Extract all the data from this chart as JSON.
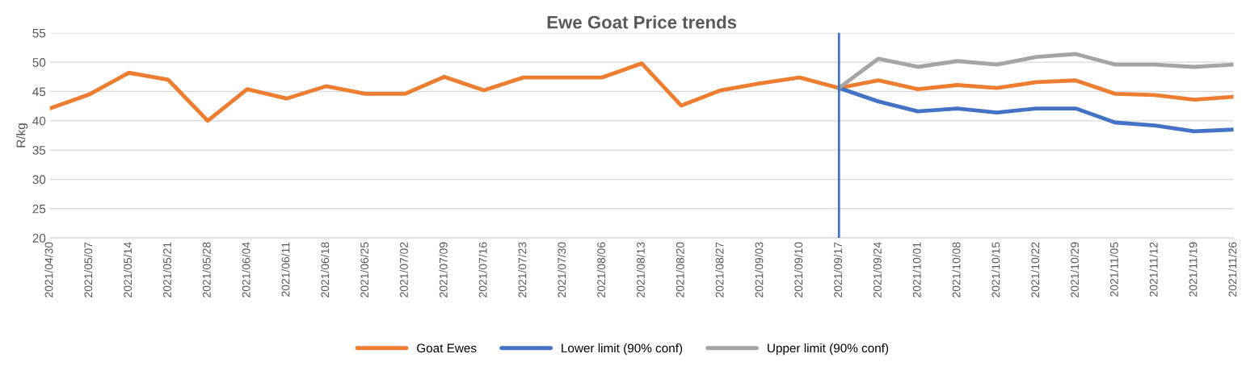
{
  "chart_data": {
    "type": "line",
    "title": "Ewe Goat Price trends",
    "ylabel": "R/kg",
    "categories": [
      "2021/04/30",
      "2021/05/07",
      "2021/05/14",
      "2021/05/21",
      "2021/05/28",
      "2021/06/04",
      "2021/06/11",
      "2021/06/18",
      "2021/06/25",
      "2021/07/02",
      "2021/07/09",
      "2021/07/16",
      "2021/07/23",
      "2021/07/30",
      "2021/08/06",
      "2021/08/13",
      "2021/08/20",
      "2021/08/27",
      "2021/09/03",
      "2021/09/10",
      "2021/09/17",
      "2021/09/24",
      "2021/10/01",
      "2021/10/08",
      "2021/10/15",
      "2021/10/22",
      "2021/10/29",
      "2021/11/05",
      "2021/11/12",
      "2021/11/19",
      "2021/11/26"
    ],
    "series": [
      {
        "name": "Goat Ewes",
        "color": "#ed7d31",
        "values": [
          42.1,
          44.5,
          48.2,
          47.0,
          40.0,
          45.4,
          43.8,
          45.9,
          44.6,
          44.6,
          47.5,
          45.2,
          47.4,
          47.4,
          47.4,
          49.8,
          42.6,
          45.2,
          46.4,
          47.4,
          45.6,
          46.9,
          45.4,
          46.1,
          45.6,
          46.6,
          46.9,
          44.6,
          44.4,
          43.6,
          44.1
        ]
      },
      {
        "name": "Lower limit (90% conf)",
        "color": "#4472c4",
        "values": [
          null,
          null,
          null,
          null,
          null,
          null,
          null,
          null,
          null,
          null,
          null,
          null,
          null,
          null,
          null,
          null,
          null,
          null,
          null,
          null,
          45.6,
          43.3,
          41.6,
          42.1,
          41.4,
          42.1,
          42.1,
          39.7,
          39.2,
          38.2,
          38.5
        ]
      },
      {
        "name": "Upper limit (90% conf)",
        "color": "#a5a5a5",
        "values": [
          null,
          null,
          null,
          null,
          null,
          null,
          null,
          null,
          null,
          null,
          null,
          null,
          null,
          null,
          null,
          null,
          null,
          null,
          null,
          null,
          45.6,
          50.6,
          49.2,
          50.2,
          49.6,
          50.9,
          51.4,
          49.6,
          49.6,
          49.2,
          49.6
        ]
      }
    ],
    "ylim": [
      20,
      55
    ],
    "yticks": [
      20,
      25,
      30,
      35,
      40,
      45,
      50,
      55
    ],
    "grid": "y",
    "legend": "bottom",
    "ref_lines": [
      {
        "axis": "x",
        "value": "2021/09/17",
        "color": "#4472c4"
      }
    ]
  }
}
